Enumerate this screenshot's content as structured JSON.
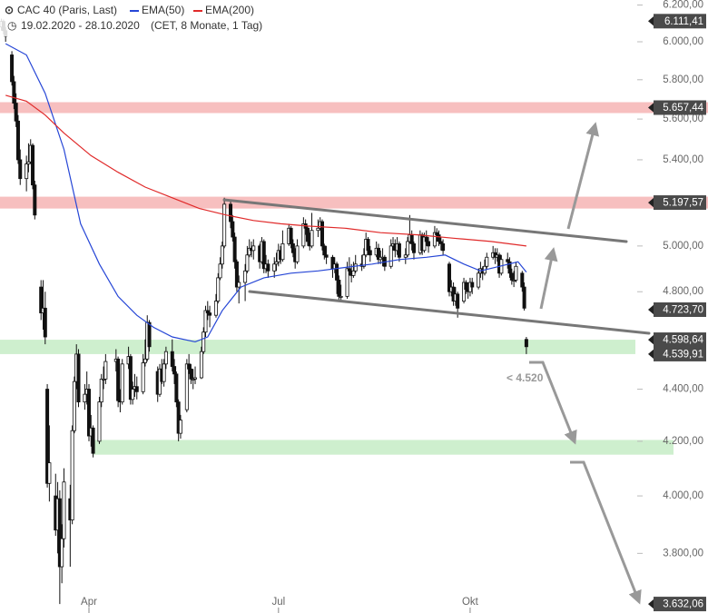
{
  "chart_data": {
    "type": "candlestick",
    "title": "CAC 40 (Paris, Last)",
    "subtitle": "19.02.2020 - 28.10.2020",
    "note": "(CET, 8 Monate, 1 Tag)",
    "annotation": "< 4.520",
    "log_scale": true,
    "up_color": "#ffffff",
    "down_color": "#111111",
    "xlim": [
      -0.7,
      339.2
    ],
    "ylim": [
      3603,
      6228
    ],
    "xticks": [
      {
        "value": 42,
        "label": "Apr"
      },
      {
        "value": 133,
        "label": "Jul"
      },
      {
        "value": 225,
        "label": "Okt"
      }
    ],
    "yticks": [
      {
        "value": 6200,
        "label": "6.200,00"
      },
      {
        "value": 6000,
        "label": "6.000,00"
      },
      {
        "value": 5800,
        "label": "5.800,00"
      },
      {
        "value": 5600,
        "label": "5.600,00"
      },
      {
        "value": 5400,
        "label": "5.400,00"
      },
      {
        "value": 5000,
        "label": "5.000,00"
      },
      {
        "value": 4800,
        "label": "4.800,00"
      },
      {
        "value": 4400,
        "label": "4.400,00"
      },
      {
        "value": 4200,
        "label": "4.200,00"
      },
      {
        "value": 4000,
        "label": "4.000,00"
      },
      {
        "value": 3800,
        "label": "3.800,00"
      }
    ],
    "levels": [
      {
        "value": 6111.41,
        "label": "6.111,41"
      },
      {
        "value": 5657.44,
        "label": "5.657,44"
      },
      {
        "value": 5197.57,
        "label": "5.197,57"
      },
      {
        "value": 4723.7,
        "label": "4.723,70"
      },
      {
        "value": 4598.64,
        "label": "4.598,64"
      },
      {
        "value": 4539.91,
        "label": "4.539,91"
      },
      {
        "value": 3632.06,
        "label": "3.632,06"
      }
    ],
    "zones": [
      {
        "from": 5630,
        "to": 5685,
        "color": "#f6b4b4"
      },
      {
        "from": 5170,
        "to": 5225,
        "color": "#f6b4b4"
      },
      {
        "from": 4539.91,
        "to": 4598.64,
        "color": "#c5ecc5"
      },
      {
        "from": 4150,
        "to": 4205,
        "color": "#c5ecc5"
      }
    ],
    "x": [
      0,
      1,
      2,
      5,
      6,
      7,
      8,
      9,
      12,
      13,
      14,
      15,
      16,
      19,
      20,
      21,
      22,
      23,
      26,
      27,
      28,
      29,
      30,
      33,
      34,
      35,
      36,
      37,
      40,
      41,
      42,
      43,
      44,
      47,
      48,
      49,
      50,
      55,
      56,
      57,
      58,
      61,
      62,
      63,
      64,
      65,
      68,
      69,
      70,
      71,
      75,
      76,
      77,
      78,
      79,
      82,
      83,
      84,
      85,
      86,
      89,
      90,
      91,
      92,
      93,
      96,
      97,
      98,
      99,
      100,
      103,
      104,
      105,
      106,
      107,
      110,
      111,
      112,
      113,
      114,
      117,
      118,
      119,
      120,
      121,
      124,
      125,
      126,
      127,
      128,
      131,
      132,
      133,
      134,
      135,
      138,
      139,
      140,
      141,
      142,
      145,
      146,
      147,
      148,
      149,
      152,
      153,
      154,
      155,
      156,
      159,
      160,
      161,
      162,
      163,
      166,
      167,
      168,
      169,
      170,
      173,
      174,
      175,
      176,
      177,
      180,
      181,
      182,
      183,
      184,
      187,
      188,
      189,
      190,
      191,
      194,
      195,
      196,
      197,
      198,
      201,
      202,
      203,
      204,
      205,
      208,
      209,
      210,
      211,
      212,
      215,
      216,
      217,
      218,
      219,
      222,
      223,
      224,
      225,
      226,
      229,
      230,
      231,
      232,
      233,
      236,
      237,
      238,
      239,
      240,
      243,
      244,
      245,
      246,
      247,
      250,
      251,
      252
    ],
    "open": [
      6080,
      6110,
      6060,
      5930,
      5790,
      5680,
      5590,
      5400,
      5310,
      5380,
      5390,
      5470,
      5280,
      4820,
      4710,
      4730,
      4400,
      4045,
      4000,
      3880,
      3990,
      3755,
      3850,
      3990,
      3915,
      4240,
      4430,
      4540,
      4350,
      4380,
      4400,
      4220,
      4250,
      4200,
      4350,
      4440,
      4440,
      4510,
      4520,
      4355,
      4350,
      4500,
      4530,
      4360,
      4400,
      4410,
      4390,
      4505,
      4520,
      4670,
      4470,
      4380,
      4480,
      4430,
      4500,
      4550,
      4490,
      4460,
      4350,
      4230,
      4320,
      4500,
      4480,
      4440,
      4440,
      4445,
      4550,
      4630,
      4720,
      4710,
      4700,
      4760,
      4860,
      4920,
      5000,
      5190,
      5110,
      5040,
      4930,
      4820,
      4840,
      4890,
      4960,
      4990,
      4980,
      5000,
      4930,
      5020,
      4900,
      4920,
      4890,
      4920,
      4930,
      4980,
      4940,
      5010,
      5080,
      5010,
      4970,
      4930,
      5000,
      5100,
      5080,
      5020,
      5000,
      5070,
      5080,
      5110,
      5000,
      4960,
      4950,
      4900,
      4920,
      4850,
      4780,
      4780,
      4900,
      4890,
      4870,
      4890,
      4920,
      4910,
      4960,
      5030,
      4980,
      4960,
      4990,
      4940,
      4950,
      4950,
      4910,
      5000,
      5010,
      4980,
      5010,
      4950,
      4960,
      5020,
      5050,
      5010,
      4970,
      5050,
      4980,
      5040,
      5020,
      5000,
      5060,
      5050,
      5020,
      5010,
      4920,
      4800,
      4820,
      4760,
      4790,
      4760,
      4840,
      4810,
      4800,
      4840,
      4820,
      4880,
      4900,
      4880,
      4910,
      4950,
      4970,
      4950,
      4960,
      4880,
      4940,
      4930,
      4880,
      4850,
      4850,
      4880,
      4820,
      4600
    ],
    "high": [
      6125,
      6120,
      6080,
      5950,
      5820,
      5730,
      5620,
      5450,
      5420,
      5480,
      5500,
      5480,
      5300,
      4850,
      4850,
      4800,
      4420,
      4260,
      4080,
      4050,
      4020,
      3900,
      4100,
      4040,
      4260,
      4450,
      4580,
      4560,
      4420,
      4470,
      4420,
      4300,
      4260,
      4370,
      4460,
      4490,
      4540,
      4560,
      4530,
      4400,
      4520,
      4570,
      4540,
      4430,
      4460,
      4450,
      4540,
      4600,
      4700,
      4680,
      4490,
      4500,
      4520,
      4520,
      4570,
      4600,
      4520,
      4470,
      4360,
      4300,
      4520,
      4540,
      4500,
      4480,
      4490,
      4570,
      4650,
      4740,
      4760,
      4740,
      4790,
      4880,
      4950,
      5020,
      5220,
      5210,
      5140,
      5060,
      4940,
      4870,
      4920,
      5000,
      5030,
      5020,
      5030,
      5010,
      5040,
      5030,
      4960,
      4940,
      4950,
      4970,
      5010,
      5000,
      5070,
      5100,
      5090,
      5030,
      4990,
      5030,
      5130,
      5120,
      5090,
      5060,
      5150,
      5120,
      5130,
      5120,
      5010,
      5000,
      4960,
      4950,
      4930,
      4870,
      4830,
      4930,
      4950,
      4920,
      4930,
      4960,
      4960,
      4990,
      5060,
      5040,
      5000,
      5020,
      5010,
      4980,
      4990,
      4960,
      5030,
      5040,
      5030,
      5040,
      5020,
      4990,
      5040,
      5140,
      5070,
      5020,
      5070,
      5060,
      5060,
      5070,
      5040,
      5090,
      5080,
      5070,
      5040,
      5030,
      4930,
      4850,
      4840,
      4820,
      4800,
      4860,
      4850,
      4840,
      4860,
      4860,
      4900,
      4930,
      4910,
      4940,
      4970,
      5000,
      4990,
      4990,
      4970,
      4960,
      4970,
      4950,
      4900,
      4890,
      4930,
      4890,
      4840,
      4610
    ],
    "low": [
      6060,
      6040,
      6000,
      5770,
      5650,
      5560,
      5380,
      5280,
      5250,
      5340,
      5380,
      5260,
      5120,
      4680,
      4640,
      4580,
      4030,
      3980,
      3860,
      3800,
      3632,
      3700,
      3820,
      3755,
      3900,
      4230,
      4400,
      4330,
      4320,
      4340,
      4200,
      4180,
      4140,
      4190,
      4330,
      4400,
      4420,
      4470,
      4330,
      4310,
      4340,
      4480,
      4340,
      4340,
      4370,
      4360,
      4380,
      4490,
      4510,
      4550,
      4350,
      4370,
      4420,
      4410,
      4480,
      4470,
      4420,
      4330,
      4200,
      4210,
      4310,
      4460,
      4420,
      4400,
      4420,
      4440,
      4540,
      4610,
      4680,
      4650,
      4690,
      4750,
      4850,
      4900,
      4990,
      5080,
      5020,
      4900,
      4800,
      4750,
      4760,
      4880,
      4950,
      4950,
      4940,
      4900,
      4920,
      4880,
      4880,
      4860,
      4860,
      4890,
      4910,
      4920,
      4930,
      5000,
      4990,
      4950,
      4900,
      4920,
      4990,
      5050,
      5000,
      4980,
      4990,
      5040,
      5070,
      4980,
      4940,
      4920,
      4860,
      4880,
      4790,
      4760,
      4760,
      4770,
      4870,
      4840,
      4860,
      4880,
      4890,
      4900,
      4950,
      4960,
      4930,
      4950,
      4920,
      4920,
      4910,
      4890,
      4900,
      4980,
      4950,
      4960,
      4930,
      4920,
      4950,
      5010,
      4980,
      4940,
      4960,
      4960,
      4970,
      5000,
      4970,
      4990,
      5020,
      5000,
      4980,
      4960,
      4780,
      4780,
      4740,
      4740,
      4690,
      4750,
      4790,
      4770,
      4780,
      4790,
      4810,
      4860,
      4850,
      4870,
      4900,
      4940,
      4920,
      4930,
      4860,
      4870,
      4900,
      4860,
      4830,
      4820,
      4840,
      4800,
      4720,
      4540
    ],
    "close": [
      6110,
      6060,
      6030,
      5790,
      5680,
      5590,
      5400,
      5310,
      5380,
      5390,
      5470,
      5280,
      5140,
      4710,
      4730,
      4610,
      4045,
      4120,
      3880,
      3990,
      3755,
      3850,
      4050,
      3915,
      4240,
      4430,
      4540,
      4350,
      4380,
      4400,
      4220,
      4250,
      4155,
      4350,
      4440,
      4440,
      4510,
      4520,
      4355,
      4350,
      4500,
      4530,
      4360,
      4400,
      4410,
      4390,
      4505,
      4520,
      4670,
      4570,
      4380,
      4480,
      4430,
      4500,
      4550,
      4490,
      4460,
      4350,
      4230,
      4280,
      4500,
      4480,
      4440,
      4440,
      4445,
      4550,
      4630,
      4720,
      4710,
      4700,
      4760,
      4860,
      4920,
      5000,
      5190,
      5110,
      5040,
      4930,
      4820,
      4840,
      4890,
      4960,
      4990,
      4980,
      5000,
      4930,
      5020,
      4900,
      4920,
      4890,
      4920,
      4930,
      4980,
      4940,
      5010,
      5080,
      5010,
      4970,
      4930,
      5000,
      5100,
      5080,
      5020,
      5000,
      5070,
      5080,
      5110,
      5000,
      4960,
      4950,
      4900,
      4920,
      4850,
      4780,
      4780,
      4900,
      4890,
      4870,
      4890,
      4920,
      4910,
      4960,
      5030,
      4980,
      4960,
      4990,
      4940,
      4950,
      4950,
      4910,
      5000,
      5010,
      4980,
      5010,
      4950,
      4960,
      5020,
      5050,
      5010,
      4970,
      5050,
      4980,
      5040,
      5020,
      5000,
      5060,
      5050,
      5020,
      5010,
      4980,
      4800,
      4820,
      4760,
      4790,
      4730,
      4840,
      4810,
      4800,
      4840,
      4820,
      4880,
      4900,
      4880,
      4910,
      4950,
      4970,
      4950,
      4960,
      4880,
      4940,
      4930,
      4880,
      4850,
      4850,
      4910,
      4820,
      4730,
      4570
    ],
    "lines": [
      {
        "name": "EMA(50)",
        "color": "#2646d6",
        "x": [
          2,
          12,
          21,
          30,
          38,
          47,
          56,
          65,
          73,
          82,
          93,
          99,
          106,
          115,
          126,
          139,
          152,
          165,
          178,
          191,
          204,
          213,
          222,
          230,
          239,
          248,
          252
        ],
        "values": [
          5990,
          5930,
          5730,
          5450,
          5100,
          4920,
          4780,
          4700,
          4650,
          4610,
          4590,
          4610,
          4720,
          4820,
          4860,
          4880,
          4890,
          4905,
          4920,
          4940,
          4950,
          4960,
          4920,
          4890,
          4910,
          4930,
          4885
        ]
      },
      {
        "name": "EMA(200)",
        "color": "#e02a2a",
        "x": [
          2,
          12,
          21,
          30,
          43,
          56,
          69,
          82,
          95,
          108,
          121,
          134,
          147,
          165,
          182,
          200,
          217,
          235,
          252
        ],
        "values": [
          5720,
          5690,
          5620,
          5530,
          5420,
          5340,
          5270,
          5220,
          5170,
          5140,
          5115,
          5100,
          5090,
          5080,
          5060,
          5050,
          5035,
          5020,
          5000
        ]
      }
    ]
  }
}
